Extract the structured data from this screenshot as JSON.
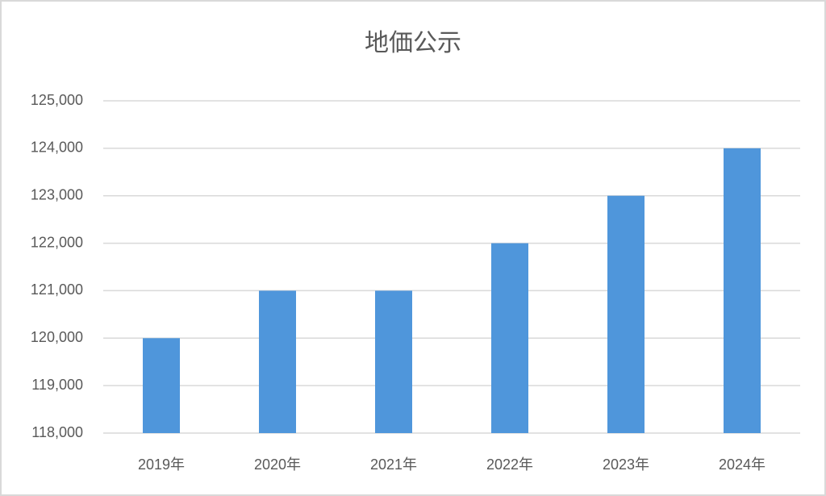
{
  "chart_data": {
    "type": "bar",
    "title": "地価公示",
    "categories": [
      "2019年",
      "2020年",
      "2021年",
      "2022年",
      "2023年",
      "2024年"
    ],
    "values": [
      120000,
      121000,
      121000,
      122000,
      123000,
      124000
    ],
    "color": "#4f96db",
    "ylim": [
      118000,
      125000
    ],
    "yticks": [
      {
        "value": 118000,
        "label": "118,000"
      },
      {
        "value": 119000,
        "label": "119,000"
      },
      {
        "value": 120000,
        "label": "120,000"
      },
      {
        "value": 121000,
        "label": "121,000"
      },
      {
        "value": 122000,
        "label": "122,000"
      },
      {
        "value": 123000,
        "label": "123,000"
      },
      {
        "value": 124000,
        "label": "124,000"
      },
      {
        "value": 125000,
        "label": "125,000"
      }
    ],
    "grid": true
  }
}
